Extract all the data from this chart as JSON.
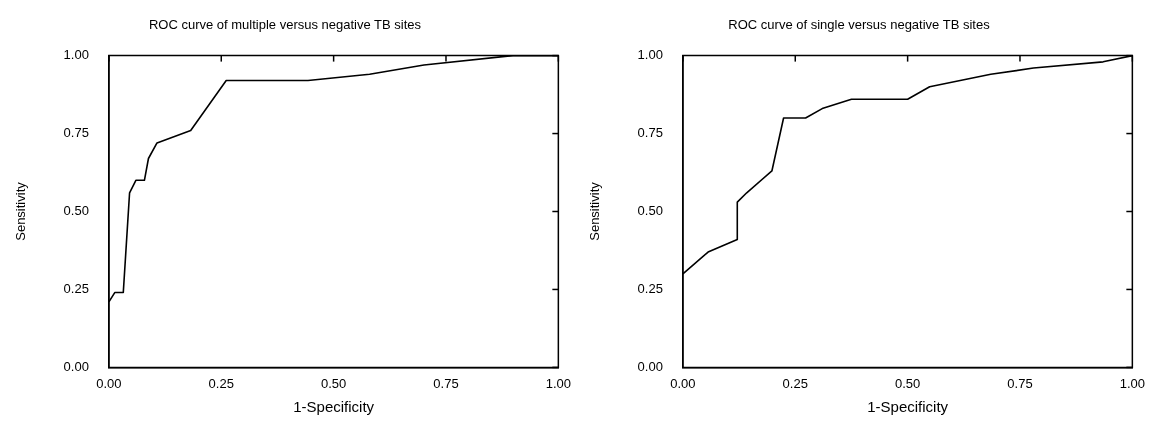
{
  "chart_data": [
    {
      "type": "line",
      "title": "ROC curve of multiple versus negative TB sites",
      "xlabel": "1-Specificity",
      "ylabel": "Sensitivity",
      "xlim": [
        0,
        1
      ],
      "ylim": [
        0,
        1
      ],
      "xticks": [
        {
          "value": 0,
          "label": "0.00"
        },
        {
          "value": 0.25,
          "label": "0.25"
        },
        {
          "value": 0.5,
          "label": "0.50"
        },
        {
          "value": 0.75,
          "label": "0.75"
        },
        {
          "value": 1,
          "label": "1.00"
        }
      ],
      "yticks": [
        {
          "value": 0,
          "label": "0.00"
        },
        {
          "value": 0.25,
          "label": "0.25"
        },
        {
          "value": 0.5,
          "label": "0.50"
        },
        {
          "value": 0.75,
          "label": "0.75"
        },
        {
          "value": 1,
          "label": "1.00"
        }
      ],
      "grid": false,
      "legend": false,
      "marker": "none",
      "line_style": "solid",
      "series": [
        {
          "color": "#000000",
          "x": [
            0,
            0.013,
            0.032,
            0.046,
            0.06,
            0.079,
            0.088,
            0.107,
            0.182,
            0.261,
            0.443,
            0.58,
            0.701,
            0.899,
            1
          ],
          "values": [
            0.21,
            0.24,
            0.24,
            0.56,
            0.6,
            0.6,
            0.67,
            0.72,
            0.76,
            0.92,
            0.92,
            0.94,
            0.97,
            1,
            1
          ]
        }
      ]
    },
    {
      "type": "line",
      "title": "ROC curve of single versus negative TB sites",
      "xlabel": "1-Specificity",
      "ylabel": "Sensitivity",
      "xlim": [
        0,
        1
      ],
      "ylim": [
        0,
        1
      ],
      "xticks": [
        {
          "value": 0,
          "label": "0.00"
        },
        {
          "value": 0.25,
          "label": "0.25"
        },
        {
          "value": 0.5,
          "label": "0.50"
        },
        {
          "value": 0.75,
          "label": "0.75"
        },
        {
          "value": 1,
          "label": "1.00"
        }
      ],
      "yticks": [
        {
          "value": 0,
          "label": "0.00"
        },
        {
          "value": 0.25,
          "label": "0.25"
        },
        {
          "value": 0.5,
          "label": "0.50"
        },
        {
          "value": 0.75,
          "label": "0.75"
        },
        {
          "value": 1,
          "label": "1.00"
        }
      ],
      "grid": false,
      "legend": false,
      "marker": "none",
      "line_style": "solid",
      "series": [
        {
          "color": "#000000",
          "x": [
            0,
            0.056,
            0.121,
            0.121,
            0.142,
            0.198,
            0.224,
            0.273,
            0.31,
            0.375,
            0.5,
            0.549,
            0.685,
            0.78,
            0.935,
            1
          ],
          "values": [
            0.3,
            0.37,
            0.41,
            0.53,
            0.56,
            0.63,
            0.8,
            0.8,
            0.83,
            0.86,
            0.86,
            0.9,
            0.94,
            0.96,
            0.98,
            1
          ]
        }
      ]
    }
  ]
}
